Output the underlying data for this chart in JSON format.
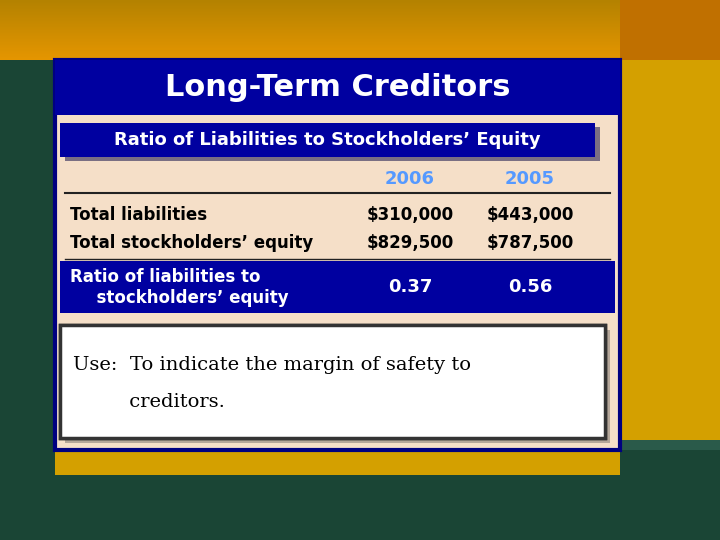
{
  "title": "Long-Term Creditors",
  "subtitle": "Ratio of Liabilities to Stockholders’ Equity",
  "col_headers": [
    "2006",
    "2005"
  ],
  "rows": [
    {
      "label": "Total liabilities",
      "val2006": "$310,000",
      "val2005": "$443,000"
    },
    {
      "label": "Total stockholders’ equity",
      "val2006": "$829,500",
      "val2005": "$787,500"
    }
  ],
  "ratio_label1": "Ratio of liabilities to",
  "ratio_label2": "  stockholders’ equity",
  "ratio_2006": "0.37",
  "ratio_2005": "0.56",
  "use_line1": "Use:  To indicate the margin of safety to",
  "use_line2": "         creditors.",
  "title_bg": "#0000a0",
  "subtitle_bg": "#0000a0",
  "ratio_row_bg": "#0000a0",
  "card_bg": "#f5dfc8",
  "use_box_bg": "#ffffff",
  "title_color": "#ffffff",
  "subtitle_color": "#ffffff",
  "header_color": "#5599ff",
  "row_label_color": "#000000",
  "row_val_color": "#000000",
  "ratio_label_color": "#ffffff",
  "ratio_val_color": "#ffffff",
  "use_text_color": "#000000",
  "card_border_color": "#000080",
  "bg_left_color": "#2a6a5a",
  "bg_top_color": "#d4a000",
  "bg_bottom_color": "#1a4a40"
}
